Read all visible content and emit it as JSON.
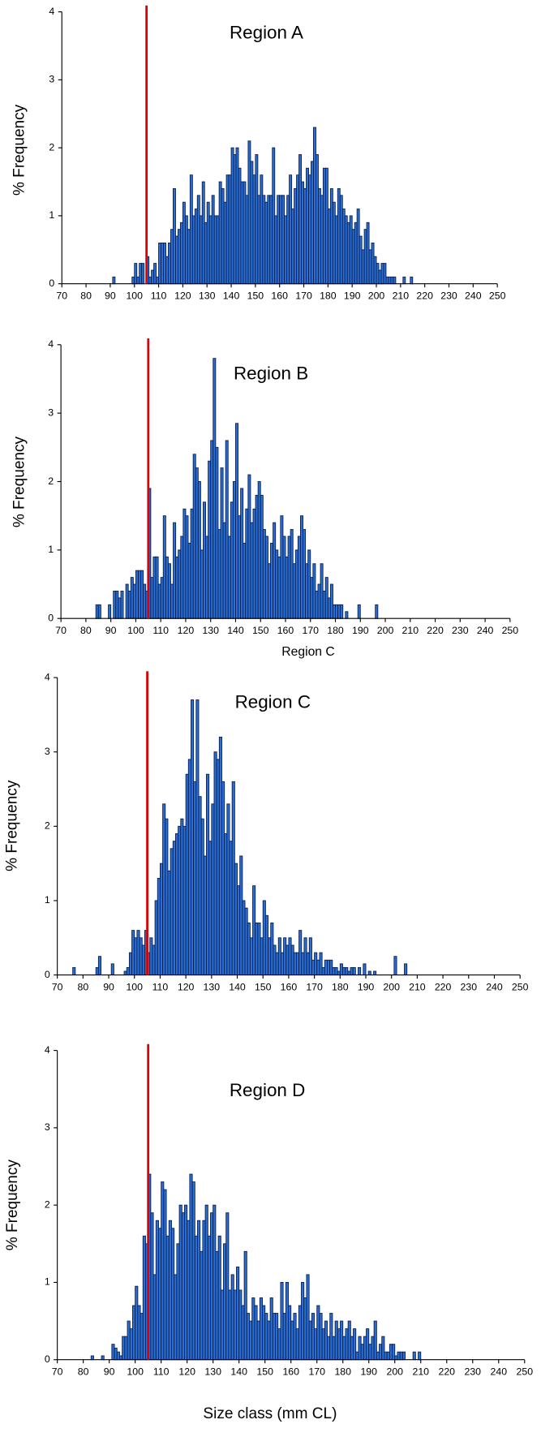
{
  "chart_data": [
    {
      "type": "histogram",
      "title": "Region A",
      "ylabel": "% Frequency",
      "color": "#2a6fd6",
      "edgecolor": "#0b1f4a",
      "reference_line": 105,
      "reference_color": "#e00000",
      "xlim": [
        70,
        250
      ],
      "xticks": [
        70,
        80,
        90,
        100,
        110,
        120,
        130,
        140,
        150,
        160,
        170,
        180,
        190,
        200,
        210,
        220,
        230,
        240,
        250
      ],
      "ylim": [
        0,
        4
      ],
      "yticks": [
        0,
        1,
        2,
        3,
        4
      ],
      "bins": [
        90,
        91,
        92,
        93,
        94,
        95,
        96,
        97,
        98,
        99,
        100,
        101,
        102,
        103,
        104,
        105,
        106,
        107,
        108,
        109,
        110,
        111,
        112,
        113,
        114,
        115,
        116,
        117,
        118,
        119,
        120,
        121,
        122,
        123,
        124,
        125,
        126,
        127,
        128,
        129,
        130,
        131,
        132,
        133,
        134,
        135,
        136,
        137,
        138,
        139,
        140,
        141,
        142,
        143,
        144,
        145,
        146,
        147,
        148,
        149,
        150,
        151,
        152,
        153,
        154,
        155,
        156,
        157,
        158,
        159,
        160,
        161,
        162,
        163,
        164,
        165,
        166,
        167,
        168,
        169,
        170,
        171,
        172,
        173,
        174,
        175,
        176,
        177,
        178,
        179,
        180,
        181,
        182,
        183,
        184,
        185,
        186,
        187,
        188,
        189,
        190,
        191,
        192,
        193,
        194,
        195,
        196,
        197,
        198,
        199,
        200,
        201,
        202,
        203,
        204,
        205,
        206,
        207,
        208,
        209,
        210,
        211,
        212,
        213,
        214,
        215
      ],
      "counts": [
        0,
        0.1,
        0,
        0,
        0,
        0,
        0,
        0,
        0,
        0.1,
        0.3,
        0.1,
        0.3,
        0.3,
        0,
        0.4,
        0.1,
        0.2,
        0.3,
        0.1,
        0.6,
        0.6,
        0.6,
        0.4,
        0.6,
        0.8,
        1.4,
        0.7,
        0.8,
        0.9,
        1.2,
        1.0,
        0.8,
        1.6,
        1.0,
        1.1,
        1.3,
        1.0,
        1.5,
        0.9,
        1.2,
        1.0,
        1.3,
        1.0,
        1.0,
        1.5,
        1.4,
        1.2,
        1.6,
        1.6,
        2.0,
        1.9,
        2.0,
        1.7,
        1.5,
        1.5,
        1.3,
        2.1,
        1.8,
        1.6,
        1.9,
        1.3,
        1.6,
        1.3,
        1.2,
        1.3,
        1.3,
        2.0,
        1.0,
        1.3,
        1.3,
        1.3,
        1.0,
        1.3,
        1.6,
        1.1,
        1.4,
        1.6,
        1.9,
        1.5,
        1.4,
        1.7,
        1.6,
        1.8,
        2.3,
        1.9,
        1.4,
        1.3,
        1.7,
        1.7,
        1.1,
        1.4,
        1.2,
        1.0,
        1.4,
        1.3,
        1.1,
        1.0,
        0.9,
        1.0,
        0.8,
        0.9,
        1.1,
        0.7,
        0.5,
        0.8,
        0.9,
        0.5,
        0.6,
        0.4,
        0.3,
        0.2,
        0.3,
        0.3,
        0.1,
        0.1,
        0.1,
        0.1,
        0,
        0,
        0,
        0.1,
        0,
        0,
        0.1
      ]
    },
    {
      "type": "histogram",
      "title": "Region B",
      "ylabel": "% Frequency",
      "xlabel": "Region C",
      "color": "#2a6fd6",
      "edgecolor": "#0b1f4a",
      "reference_line": 105,
      "reference_color": "#e00000",
      "xlim": [
        70,
        250
      ],
      "xticks": [
        70,
        80,
        90,
        100,
        110,
        120,
        130,
        140,
        150,
        160,
        170,
        180,
        190,
        200,
        210,
        220,
        230,
        240,
        250
      ],
      "ylim": [
        0,
        4
      ],
      "yticks": [
        0,
        1,
        2,
        3,
        4
      ],
      "bins": [
        80,
        81,
        82,
        83,
        84,
        85,
        86,
        87,
        88,
        89,
        90,
        91,
        92,
        93,
        94,
        95,
        96,
        97,
        98,
        99,
        100,
        101,
        102,
        103,
        104,
        105,
        106,
        107,
        108,
        109,
        110,
        111,
        112,
        113,
        114,
        115,
        116,
        117,
        118,
        119,
        120,
        121,
        122,
        123,
        124,
        125,
        126,
        127,
        128,
        129,
        130,
        131,
        132,
        133,
        134,
        135,
        136,
        137,
        138,
        139,
        140,
        141,
        142,
        143,
        144,
        145,
        146,
        147,
        148,
        149,
        150,
        151,
        152,
        153,
        154,
        155,
        156,
        157,
        158,
        159,
        160,
        161,
        162,
        163,
        164,
        165,
        166,
        167,
        168,
        169,
        170,
        171,
        172,
        173,
        174,
        175,
        176,
        177,
        178,
        179,
        180,
        181,
        182,
        183,
        184,
        185,
        186,
        187,
        188,
        189,
        190,
        191,
        192,
        193,
        194,
        195,
        196,
        197,
        198,
        199,
        200
      ],
      "counts": [
        0,
        0,
        0,
        0,
        0.2,
        0.2,
        0,
        0,
        0,
        0.2,
        0,
        0.4,
        0.4,
        0.3,
        0.4,
        0,
        0.5,
        0.4,
        0.6,
        0.5,
        0.7,
        0.7,
        0.7,
        0.5,
        0.4,
        1.9,
        0.6,
        0.9,
        0.9,
        0.5,
        0.6,
        1.5,
        0.9,
        0.8,
        0.5,
        1.4,
        0.9,
        1.0,
        1.2,
        1.6,
        1.5,
        1.1,
        1.6,
        2.4,
        2.2,
        2.0,
        1.0,
        1.7,
        1.2,
        2.3,
        2.6,
        3.8,
        2.5,
        1.3,
        2.2,
        1.4,
        2.6,
        1.2,
        1.7,
        2.0,
        2.85,
        1.5,
        1.9,
        1.1,
        1.6,
        2.1,
        1.4,
        1.6,
        1.8,
        2.0,
        1.8,
        1.3,
        1.2,
        0.8,
        1.1,
        1.4,
        1.0,
        0.9,
        1.5,
        1.2,
        0.9,
        1.2,
        1.3,
        0.8,
        1.0,
        1.2,
        1.5,
        1.3,
        0.8,
        1.0,
        0.6,
        0.8,
        0.4,
        0.5,
        0.8,
        0.4,
        0.6,
        0.3,
        0.5,
        0.2,
        0.2,
        0.2,
        0.2,
        0,
        0.1,
        0,
        0,
        0,
        0,
        0.2,
        0,
        0,
        0,
        0,
        0,
        0,
        0.2,
        0,
        0,
        0
      ]
    },
    {
      "type": "histogram",
      "title": "Region C",
      "ylabel": "% Frequency",
      "color": "#2a6fd6",
      "edgecolor": "#0b1f4a",
      "reference_line": 105,
      "reference_color": "#e00000",
      "xlim": [
        70,
        250
      ],
      "xticks": [
        70,
        80,
        90,
        100,
        110,
        120,
        130,
        140,
        150,
        160,
        170,
        180,
        190,
        200,
        210,
        220,
        230,
        240,
        250
      ],
      "ylim": [
        0,
        4
      ],
      "yticks": [
        0,
        1,
        2,
        3,
        4
      ],
      "bins": [
        70,
        71,
        72,
        73,
        74,
        75,
        76,
        77,
        78,
        79,
        80,
        81,
        82,
        83,
        84,
        85,
        86,
        87,
        88,
        89,
        90,
        91,
        92,
        93,
        94,
        95,
        96,
        97,
        98,
        99,
        100,
        101,
        102,
        103,
        104,
        105,
        106,
        107,
        108,
        109,
        110,
        111,
        112,
        113,
        114,
        115,
        116,
        117,
        118,
        119,
        120,
        121,
        122,
        123,
        124,
        125,
        126,
        127,
        128,
        129,
        130,
        131,
        132,
        133,
        134,
        135,
        136,
        137,
        138,
        139,
        140,
        141,
        142,
        143,
        144,
        145,
        146,
        147,
        148,
        149,
        150,
        151,
        152,
        153,
        154,
        155,
        156,
        157,
        158,
        159,
        160,
        161,
        162,
        163,
        164,
        165,
        166,
        167,
        168,
        169,
        170,
        171,
        172,
        173,
        174,
        175,
        176,
        177,
        178,
        179,
        180,
        181,
        182,
        183,
        184,
        185,
        186,
        187,
        188,
        189,
        190,
        191,
        192,
        193,
        194,
        195,
        196,
        197,
        198,
        199,
        200,
        201,
        202,
        203,
        204,
        205,
        206,
        207,
        208,
        209,
        210
      ],
      "counts": [
        0,
        0,
        0,
        0,
        0,
        0,
        0.1,
        0,
        0,
        0,
        0,
        0,
        0,
        0,
        0,
        0.1,
        0.25,
        0,
        0,
        0,
        0,
        0.15,
        0,
        0,
        0,
        0,
        0.05,
        0.1,
        0.3,
        0.6,
        0.5,
        0.6,
        0.5,
        0.4,
        0.6,
        0.3,
        0.5,
        0.4,
        1.0,
        1.3,
        1.5,
        2.3,
        2.1,
        1.4,
        1.7,
        1.8,
        1.9,
        2.0,
        2.1,
        2.0,
        2.7,
        2.9,
        3.7,
        2.6,
        3.7,
        2.4,
        2.1,
        1.6,
        2.7,
        1.8,
        2.3,
        3.0,
        2.9,
        3.2,
        2.6,
        1.9,
        2.3,
        1.8,
        2.6,
        1.5,
        1.2,
        1.6,
        1.0,
        0.9,
        0.7,
        0.5,
        1.2,
        0.7,
        0.7,
        0.5,
        1.0,
        0.8,
        0.5,
        0.7,
        0.4,
        0.3,
        0.5,
        0.3,
        0.5,
        0.4,
        0.5,
        0.4,
        0.3,
        0.3,
        0.6,
        0.3,
        0.5,
        0.3,
        0.5,
        0.2,
        0.3,
        0.2,
        0.3,
        0.1,
        0.2,
        0.2,
        0.2,
        0.1,
        0.1,
        0.05,
        0.15,
        0.1,
        0.1,
        0.05,
        0.1,
        0.1,
        0,
        0.1,
        0,
        0.15,
        0,
        0.05,
        0,
        0.05,
        0,
        0,
        0,
        0,
        0,
        0,
        0,
        0.25,
        0,
        0,
        0,
        0.15,
        0,
        0,
        0,
        0
      ]
    },
    {
      "type": "histogram",
      "title": "Region D",
      "ylabel": "% Frequency",
      "xlabel": "Size class (mm CL)",
      "color": "#2a6fd6",
      "edgecolor": "#0b1f4a",
      "reference_line": 105,
      "reference_color": "#e00000",
      "xlim": [
        70,
        250
      ],
      "xticks": [
        70,
        80,
        90,
        100,
        110,
        120,
        130,
        140,
        150,
        160,
        170,
        180,
        190,
        200,
        210,
        220,
        230,
        240,
        250
      ],
      "ylim": [
        0,
        4
      ],
      "yticks": [
        0,
        1,
        2,
        3,
        4
      ],
      "bins": [
        80,
        81,
        82,
        83,
        84,
        85,
        86,
        87,
        88,
        89,
        90,
        91,
        92,
        93,
        94,
        95,
        96,
        97,
        98,
        99,
        100,
        101,
        102,
        103,
        104,
        105,
        106,
        107,
        108,
        109,
        110,
        111,
        112,
        113,
        114,
        115,
        116,
        117,
        118,
        119,
        120,
        121,
        122,
        123,
        124,
        125,
        126,
        127,
        128,
        129,
        130,
        131,
        132,
        133,
        134,
        135,
        136,
        137,
        138,
        139,
        140,
        141,
        142,
        143,
        144,
        145,
        146,
        147,
        148,
        149,
        150,
        151,
        152,
        153,
        154,
        155,
        156,
        157,
        158,
        159,
        160,
        161,
        162,
        163,
        164,
        165,
        166,
        167,
        168,
        169,
        170,
        171,
        172,
        173,
        174,
        175,
        176,
        177,
        178,
        179,
        180,
        181,
        182,
        183,
        184,
        185,
        186,
        187,
        188,
        189,
        190,
        191,
        192,
        193,
        194,
        195,
        196,
        197,
        198,
        199,
        200,
        201,
        202,
        203,
        204,
        205,
        206,
        207,
        208,
        209,
        210
      ],
      "counts": [
        0,
        0,
        0,
        0.05,
        0,
        0,
        0,
        0.05,
        0,
        0,
        0,
        0.2,
        0.15,
        0.1,
        0.05,
        0.3,
        0.3,
        0.5,
        0.4,
        0.7,
        0.95,
        0.7,
        0.6,
        1.6,
        1.5,
        2.4,
        1.9,
        1.1,
        1.8,
        1.7,
        2.3,
        2.2,
        1.6,
        1.8,
        1.7,
        1.1,
        1.5,
        2.0,
        1.9,
        2.0,
        1.8,
        2.4,
        2.3,
        1.6,
        1.8,
        1.4,
        1.8,
        2.0,
        1.6,
        1.9,
        2.0,
        1.4,
        1.6,
        0.9,
        1.5,
        1.9,
        0.9,
        1.1,
        0.9,
        1.2,
        0.9,
        0.7,
        1.4,
        0.6,
        0.5,
        0.8,
        0.7,
        0.5,
        0.8,
        0.7,
        0.6,
        0.5,
        0.8,
        0.6,
        0.6,
        0.4,
        1.0,
        0.6,
        1.0,
        0.7,
        0.5,
        0.6,
        0.4,
        0.7,
        1.0,
        0.8,
        1.1,
        0.5,
        0.6,
        0.4,
        0.7,
        0.6,
        0.4,
        0.5,
        0.3,
        0.6,
        0.3,
        0.5,
        0.4,
        0.5,
        0.3,
        0.4,
        0.5,
        0.3,
        0.4,
        0.1,
        0.3,
        0.2,
        0.3,
        0.4,
        0.2,
        0.3,
        0.5,
        0.1,
        0.2,
        0.3,
        0.1,
        0.1,
        0.2,
        0.2,
        0.05,
        0.1,
        0.1,
        0.1,
        0,
        0,
        0,
        0.1,
        0,
        0.1
      ]
    }
  ]
}
